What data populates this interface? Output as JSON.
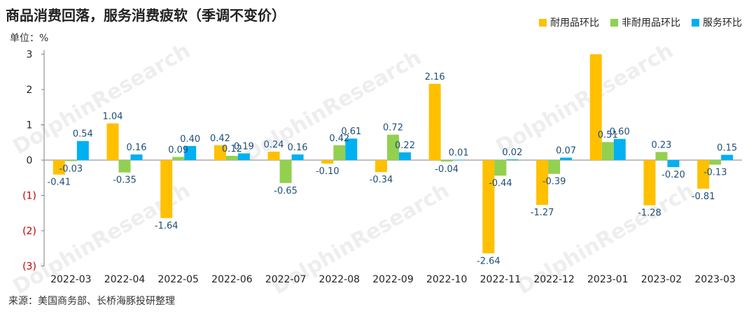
{
  "header": {
    "title": "商品消费回落，服务消费疲软（季调不变价）",
    "unit": "单位：%"
  },
  "footer": {
    "source": "来源：美国商务部、长桥海豚投研整理"
  },
  "colors": {
    "durable": "#FFC000",
    "nondurable": "#92D050",
    "services": "#00B0F0",
    "negative_tick": "#C00000",
    "label": "#1F4E79"
  },
  "chart_data": {
    "type": "bar",
    "categories": [
      "2022-03",
      "2022-04",
      "2022-05",
      "2022-06",
      "2022-07",
      "2022-08",
      "2022-09",
      "2022-10",
      "2022-11",
      "2022-12",
      "2023-01",
      "2023-02",
      "2023-03"
    ],
    "series": [
      {
        "name": "耐用品环比",
        "values": [
          -0.41,
          1.04,
          -1.64,
          0.42,
          0.24,
          -0.1,
          -0.34,
          2.16,
          -2.64,
          -1.27,
          3.0,
          -1.28,
          -0.81
        ],
        "labels": [
          "-0.41",
          "1.04",
          "-1.64",
          "0.42",
          "0.24",
          "-0.10",
          "-0.34",
          "2.16",
          "-2.64",
          "-1.27",
          "",
          "-1.28",
          "-0.81"
        ]
      },
      {
        "name": "非耐用品环比",
        "values": [
          -0.03,
          -0.35,
          0.09,
          0.12,
          -0.65,
          0.42,
          0.72,
          -0.04,
          -0.44,
          -0.39,
          0.51,
          0.23,
          -0.13
        ],
        "labels": [
          "-0.03",
          "-0.35",
          "0.09",
          "0.12",
          "-0.65",
          "0.42",
          "0.72",
          "-0.04",
          "-0.44",
          "-0.39",
          "0.51",
          "0.23",
          "-0.13"
        ]
      },
      {
        "name": "服务环比",
        "values": [
          0.54,
          0.16,
          0.4,
          0.19,
          0.16,
          0.61,
          0.22,
          0.01,
          0.02,
          0.07,
          0.6,
          -0.2,
          0.15
        ],
        "labels": [
          "0.54",
          "0.16",
          "0.40",
          "0.19",
          "0.16",
          "0.61",
          "0.22",
          "0.01",
          "0.02",
          "0.07",
          "0.60",
          "-0.20",
          "0.15"
        ]
      }
    ],
    "yticks": [
      {
        "value": 3,
        "label": "3"
      },
      {
        "value": 2,
        "label": "2"
      },
      {
        "value": 1,
        "label": "1"
      },
      {
        "value": 0,
        "label": "0"
      },
      {
        "value": -1,
        "label": "(1)"
      },
      {
        "value": -2,
        "label": "(2)"
      },
      {
        "value": -3,
        "label": "(3)"
      }
    ],
    "ylim": [
      -3,
      3
    ],
    "legend_position": "top-right",
    "grid": false
  }
}
